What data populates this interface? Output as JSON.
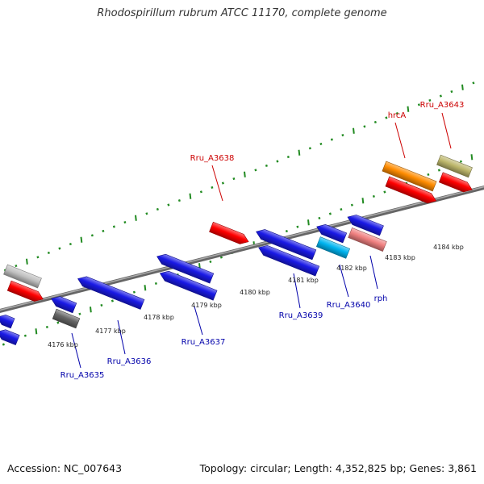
{
  "title": "Rhodospirillum rubrum ATCC 11170, complete genome",
  "footer": {
    "accession": "Accession: NC_007643",
    "topology": "Topology: circular; Length: 4,352,825 bp; Genes: 3,861"
  },
  "colors": {
    "backbone": "#808080",
    "tick": "#228b22",
    "plus_label": "#cc0000",
    "minus_label": "#0000aa",
    "red": "#ff0000",
    "blue": "#1a1ae6",
    "cyan": "#00b4f0",
    "pink": "#f08080",
    "orange": "#ff8c00",
    "olive": "#bdb76b",
    "gray": "#c0c0c0",
    "darkgray": "#666666"
  },
  "kbp_labels": [
    "4176 kbp",
    "4177 kbp",
    "4178 kbp",
    "4179 kbp",
    "4180 kbp",
    "4181 kbp",
    "4182 kbp",
    "4183 kbp",
    "4184 kbp"
  ],
  "plus_labels": [
    "Rru_A3638",
    "hrcA",
    "Rru_A3643"
  ],
  "minus_labels": [
    "Rru_A3635",
    "Rru_A3636",
    "Rru_A3637",
    "Rru_A3639",
    "Rru_A3640",
    "rph"
  ]
}
